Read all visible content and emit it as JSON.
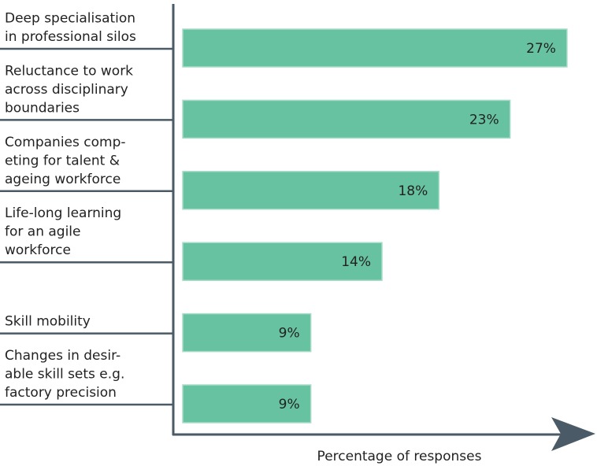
{
  "chart_data": {
    "type": "barh",
    "categories": [
      [
        "Deep specialisation",
        "in professional silos"
      ],
      [
        "Reluctance to work",
        "across disciplinary",
        "boundaries"
      ],
      [
        "Companies comp-",
        "eting for talent &",
        "ageing workforce"
      ],
      [
        "Life-long learning",
        "for an agile",
        "workforce"
      ],
      [
        "Skill mobility"
      ],
      [
        "Changes in desir-",
        "able skill sets e.g.",
        "factory precision"
      ]
    ],
    "values": [
      27,
      23,
      18,
      14,
      9,
      9
    ],
    "value_labels": [
      "27%",
      "23%",
      "18%",
      "14%",
      "9%",
      "9%"
    ],
    "color": "#66c2a0",
    "xlim": [
      0,
      28
    ],
    "xlabel": "Percentage of responses"
  }
}
